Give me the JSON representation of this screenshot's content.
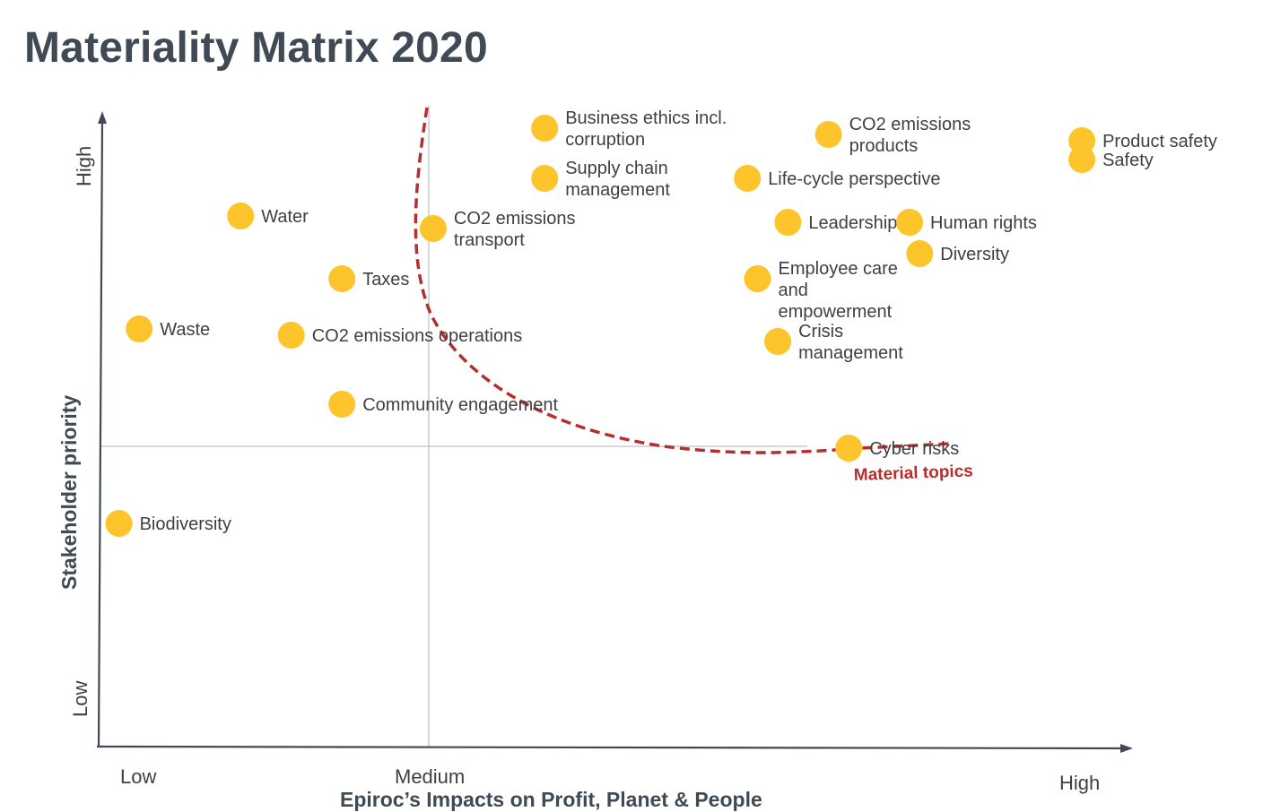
{
  "title": "Materiality Matrix 2020",
  "chart_data": {
    "type": "scatter",
    "title": "Materiality Matrix 2020",
    "xlabel": "Epiroc’s Impacts on Profit, Planet & People",
    "ylabel": "Stakeholder priority",
    "x_ticks": [
      "Low",
      "Medium",
      "High"
    ],
    "y_ticks": [
      "Low",
      "High"
    ],
    "xlim": [
      0,
      100
    ],
    "ylim": [
      0,
      100
    ],
    "marker_color": "#FDC52B",
    "curve_color": "#B52F2F",
    "axis_color": "#3f4a55",
    "threshold_label": "Material topics",
    "grid": false,
    "points": [
      {
        "label": "Business ethics incl. corruption",
        "x": 44,
        "y": 97
      },
      {
        "label": "Supply chain management",
        "x": 44,
        "y": 89
      },
      {
        "label": "CO2 emissions products",
        "x": 72,
        "y": 96
      },
      {
        "label": "Product safety",
        "x": 97,
        "y": 95
      },
      {
        "label": "Safety",
        "x": 97,
        "y": 92
      },
      {
        "label": "Life-cycle perspective",
        "x": 64,
        "y": 89
      },
      {
        "label": "Water",
        "x": 14,
        "y": 83
      },
      {
        "label": "CO2 emissions transport",
        "x": 33,
        "y": 81
      },
      {
        "label": "Leadership",
        "x": 68,
        "y": 82
      },
      {
        "label": "Human rights",
        "x": 80,
        "y": 82
      },
      {
        "label": "Diversity",
        "x": 81,
        "y": 77
      },
      {
        "label": "Employee care and empowerment",
        "x": 65,
        "y": 73
      },
      {
        "label": "Taxes",
        "x": 24,
        "y": 73
      },
      {
        "label": "Waste",
        "x": 4,
        "y": 65
      },
      {
        "label": "CO2 emissions operations",
        "x": 19,
        "y": 64
      },
      {
        "label": "Crisis management",
        "x": 67,
        "y": 63
      },
      {
        "label": "Community engagement",
        "x": 24,
        "y": 53
      },
      {
        "label": "Cyber risks",
        "x": 74,
        "y": 46
      },
      {
        "label": "Biodiversity",
        "x": 2,
        "y": 34
      }
    ]
  }
}
